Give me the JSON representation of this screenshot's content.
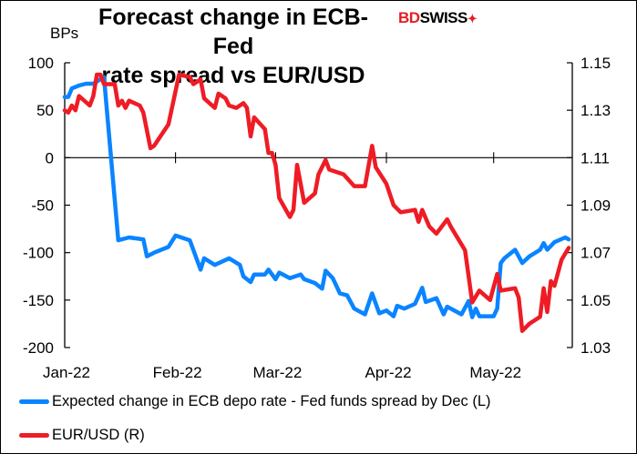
{
  "brand": {
    "logo_text": "BDSWISS"
  },
  "chart_data": {
    "type": "line",
    "title": "Forecast change in ECB-Fed rate spread vs EUR/USD",
    "title_lines": [
      "Forecast change in ECB-Fed",
      "rate spread vs EUR/USD"
    ],
    "ylabel_left": "BPs",
    "ylim_left": [
      -200,
      100
    ],
    "yticks_left": [
      "100",
      "50",
      "0",
      "-50",
      "-100",
      "-150",
      "-200"
    ],
    "ylim_right": [
      1.03,
      1.15
    ],
    "yticks_right": [
      "1.15",
      "1.13",
      "1.11",
      "1.09",
      "1.07",
      "1.05",
      "1.03"
    ],
    "xlim": [
      "2022-01-01",
      "2022-05-23"
    ],
    "xticks": [
      {
        "date": "2022-01-01",
        "label": "Jan-22"
      },
      {
        "date": "2022-02-01",
        "label": "Feb-22"
      },
      {
        "date": "2022-03-01",
        "label": "Mar-22"
      },
      {
        "date": "2022-04-01",
        "label": "Apr-22"
      },
      {
        "date": "2022-05-01",
        "label": "May-22"
      }
    ],
    "grid": false,
    "zero_line": true,
    "legend_position": "bottom",
    "series": [
      {
        "name": "Expected change in ECB depo rate - Fed funds spread by Dec (L)",
        "axis": "left",
        "color": "#0a84ff",
        "points": [
          [
            "2022-01-01",
            64
          ],
          [
            "2022-01-02",
            64
          ],
          [
            "2022-01-03",
            73
          ],
          [
            "2022-01-05",
            76
          ],
          [
            "2022-01-07",
            78
          ],
          [
            "2022-01-09",
            78
          ],
          [
            "2022-01-12",
            85
          ],
          [
            "2022-01-16",
            -87
          ],
          [
            "2022-01-19",
            -84
          ],
          [
            "2022-01-23",
            -86
          ],
          [
            "2022-01-24",
            -104
          ],
          [
            "2022-01-26",
            -100
          ],
          [
            "2022-01-30",
            -94
          ],
          [
            "2022-02-01",
            -82
          ],
          [
            "2022-02-05",
            -87
          ],
          [
            "2022-02-08",
            -118
          ],
          [
            "2022-02-09",
            -106
          ],
          [
            "2022-02-12",
            -113
          ],
          [
            "2022-02-16",
            -106
          ],
          [
            "2022-02-19",
            -113
          ],
          [
            "2022-02-20",
            -125
          ],
          [
            "2022-02-22",
            -131
          ],
          [
            "2022-02-23",
            -123
          ],
          [
            "2022-02-26",
            -123
          ],
          [
            "2022-02-27",
            -118
          ],
          [
            "2022-03-01",
            -128
          ],
          [
            "2022-03-02",
            -121
          ],
          [
            "2022-03-05",
            -127
          ],
          [
            "2022-03-08",
            -123
          ],
          [
            "2022-03-09",
            -128
          ],
          [
            "2022-03-12",
            -132
          ],
          [
            "2022-03-14",
            -138
          ],
          [
            "2022-03-15",
            -119
          ],
          [
            "2022-03-17",
            -127
          ],
          [
            "2022-03-19",
            -143
          ],
          [
            "2022-03-21",
            -145
          ],
          [
            "2022-03-23",
            -159
          ],
          [
            "2022-03-26",
            -165
          ],
          [
            "2022-03-28",
            -143
          ],
          [
            "2022-03-30",
            -164
          ],
          [
            "2022-04-01",
            -161
          ],
          [
            "2022-04-03",
            -167
          ],
          [
            "2022-04-04",
            -156
          ],
          [
            "2022-04-06",
            -159
          ],
          [
            "2022-04-09",
            -154
          ],
          [
            "2022-04-11",
            -137
          ],
          [
            "2022-04-12",
            -152
          ],
          [
            "2022-04-15",
            -148
          ],
          [
            "2022-04-17",
            -165
          ],
          [
            "2022-04-18",
            -157
          ],
          [
            "2022-04-22",
            -165
          ],
          [
            "2022-04-24",
            -151
          ],
          [
            "2022-04-25",
            -168
          ],
          [
            "2022-04-26",
            -159
          ],
          [
            "2022-04-27",
            -167
          ],
          [
            "2022-05-01",
            -167
          ],
          [
            "2022-05-02",
            -159
          ],
          [
            "2022-05-03",
            -111
          ],
          [
            "2022-05-04",
            -106
          ],
          [
            "2022-05-07",
            -97
          ],
          [
            "2022-05-09",
            -111
          ],
          [
            "2022-05-11",
            -104
          ],
          [
            "2022-05-14",
            -97
          ],
          [
            "2022-05-15",
            -90
          ],
          [
            "2022-05-16",
            -97
          ],
          [
            "2022-05-18",
            -89
          ],
          [
            "2022-05-21",
            -84
          ],
          [
            "2022-05-22",
            -86
          ]
        ]
      },
      {
        "name": "EUR/USD (R)",
        "axis": "right",
        "color": "#ee1c25",
        "points": [
          [
            "2022-01-01",
            1.13
          ],
          [
            "2022-01-02",
            1.129
          ],
          [
            "2022-01-03",
            1.132
          ],
          [
            "2022-01-04",
            1.13
          ],
          [
            "2022-01-05",
            1.136
          ],
          [
            "2022-01-08",
            1.132
          ],
          [
            "2022-01-09",
            1.136
          ],
          [
            "2022-01-10",
            1.145
          ],
          [
            "2022-01-11",
            1.145
          ],
          [
            "2022-01-12",
            1.141
          ],
          [
            "2022-01-15",
            1.141
          ],
          [
            "2022-01-16",
            1.132
          ],
          [
            "2022-01-17",
            1.134
          ],
          [
            "2022-01-18",
            1.131
          ],
          [
            "2022-01-19",
            1.134
          ],
          [
            "2022-01-22",
            1.132
          ],
          [
            "2022-01-23",
            1.129
          ],
          [
            "2022-01-25",
            1.114
          ],
          [
            "2022-01-26",
            1.115
          ],
          [
            "2022-01-30",
            1.124
          ],
          [
            "2022-01-31",
            1.131
          ],
          [
            "2022-02-02",
            1.145
          ],
          [
            "2022-02-05",
            1.144
          ],
          [
            "2022-02-06",
            1.141
          ],
          [
            "2022-02-08",
            1.143
          ],
          [
            "2022-02-09",
            1.135
          ],
          [
            "2022-02-12",
            1.131
          ],
          [
            "2022-02-13",
            1.137
          ],
          [
            "2022-02-15",
            1.135
          ],
          [
            "2022-02-16",
            1.132
          ],
          [
            "2022-02-18",
            1.131
          ],
          [
            "2022-02-20",
            1.133
          ],
          [
            "2022-02-21",
            1.131
          ],
          [
            "2022-02-22",
            1.119
          ],
          [
            "2022-02-23",
            1.127
          ],
          [
            "2022-02-26",
            1.122
          ],
          [
            "2022-02-27",
            1.112
          ],
          [
            "2022-02-28",
            1.112
          ],
          [
            "2022-03-01",
            1.107
          ],
          [
            "2022-03-02",
            1.093
          ],
          [
            "2022-03-05",
            1.085
          ],
          [
            "2022-03-06",
            1.088
          ],
          [
            "2022-03-07",
            1.107
          ],
          [
            "2022-03-09",
            1.091
          ],
          [
            "2022-03-12",
            1.095
          ],
          [
            "2022-03-13",
            1.103
          ],
          [
            "2022-03-15",
            1.109
          ],
          [
            "2022-03-16",
            1.105
          ],
          [
            "2022-03-20",
            1.103
          ],
          [
            "2022-03-23",
            1.098
          ],
          [
            "2022-03-26",
            1.098
          ],
          [
            "2022-03-28",
            1.115
          ],
          [
            "2022-03-29",
            1.106
          ],
          [
            "2022-04-01",
            1.099
          ],
          [
            "2022-04-03",
            1.09
          ],
          [
            "2022-04-05",
            1.087
          ],
          [
            "2022-04-09",
            1.088
          ],
          [
            "2022-04-10",
            1.083
          ],
          [
            "2022-04-11",
            1.088
          ],
          [
            "2022-04-13",
            1.081
          ],
          [
            "2022-04-15",
            1.078
          ],
          [
            "2022-04-18",
            1.084
          ],
          [
            "2022-04-19",
            1.081
          ],
          [
            "2022-04-23",
            1.071
          ],
          [
            "2022-04-25",
            1.049
          ],
          [
            "2022-04-27",
            1.054
          ],
          [
            "2022-04-30",
            1.05
          ],
          [
            "2022-05-02",
            1.061
          ],
          [
            "2022-05-03",
            1.054
          ],
          [
            "2022-05-07",
            1.055
          ],
          [
            "2022-05-08",
            1.051
          ],
          [
            "2022-05-09",
            1.037
          ],
          [
            "2022-05-11",
            1.04
          ],
          [
            "2022-05-14",
            1.043
          ],
          [
            "2022-05-15",
            1.055
          ],
          [
            "2022-05-16",
            1.045
          ],
          [
            "2022-05-17",
            1.058
          ],
          [
            "2022-05-18",
            1.056
          ],
          [
            "2022-05-20",
            1.067
          ],
          [
            "2022-05-22",
            1.072
          ]
        ]
      }
    ]
  }
}
